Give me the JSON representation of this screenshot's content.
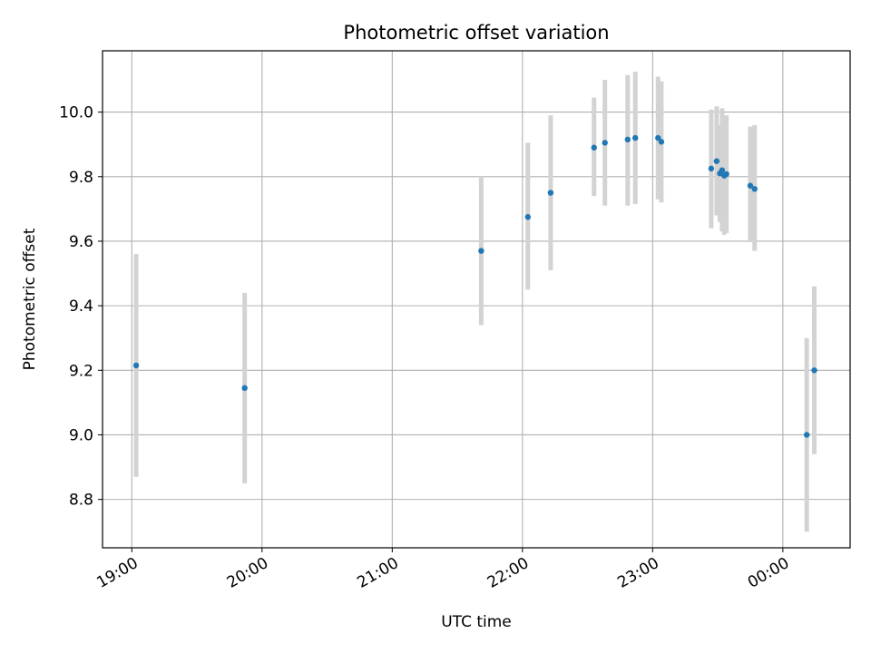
{
  "chart_data": {
    "type": "scatter",
    "title": "Photometric offset variation",
    "xlabel": "UTC time",
    "ylabel": "Photometric offset",
    "x_unit": "minutes since 19:00 UTC",
    "xlim": [
      -13.5,
      331
    ],
    "ylim": [
      8.65,
      10.19
    ],
    "grid": true,
    "x_ticks": [
      {
        "value": 0,
        "label": "19:00"
      },
      {
        "value": 60,
        "label": "20:00"
      },
      {
        "value": 120,
        "label": "21:00"
      },
      {
        "value": 180,
        "label": "22:00"
      },
      {
        "value": 240,
        "label": "23:00"
      },
      {
        "value": 300,
        "label": "00:00"
      }
    ],
    "y_ticks": [
      {
        "value": 8.8,
        "label": "8.8"
      },
      {
        "value": 9.0,
        "label": "9.0"
      },
      {
        "value": 9.2,
        "label": "9.2"
      },
      {
        "value": 9.4,
        "label": "9.4"
      },
      {
        "value": 9.6,
        "label": "9.6"
      },
      {
        "value": 9.8,
        "label": "9.8"
      },
      {
        "value": 10.0,
        "label": "10.0"
      }
    ],
    "point_color": "#1f77b4",
    "errorbar_color": "#d3d3d3",
    "points": [
      {
        "x": 2.0,
        "y": 9.215,
        "ylo": 8.87,
        "yhi": 9.56
      },
      {
        "x": 52.0,
        "y": 9.145,
        "ylo": 8.85,
        "yhi": 9.44
      },
      {
        "x": 161.0,
        "y": 9.57,
        "ylo": 9.34,
        "yhi": 9.8
      },
      {
        "x": 182.5,
        "y": 9.675,
        "ylo": 9.45,
        "yhi": 9.905
      },
      {
        "x": 193.0,
        "y": 9.75,
        "ylo": 9.51,
        "yhi": 9.99
      },
      {
        "x": 213.0,
        "y": 9.89,
        "ylo": 9.74,
        "yhi": 10.045
      },
      {
        "x": 218.0,
        "y": 9.905,
        "ylo": 9.71,
        "yhi": 10.1
      },
      {
        "x": 228.5,
        "y": 9.915,
        "ylo": 9.71,
        "yhi": 10.115
      },
      {
        "x": 232.0,
        "y": 9.92,
        "ylo": 9.715,
        "yhi": 10.125
      },
      {
        "x": 242.5,
        "y": 9.92,
        "ylo": 9.73,
        "yhi": 10.11
      },
      {
        "x": 244.0,
        "y": 9.908,
        "ylo": 9.72,
        "yhi": 10.095
      },
      {
        "x": 267.0,
        "y": 9.825,
        "ylo": 9.64,
        "yhi": 10.008
      },
      {
        "x": 269.5,
        "y": 9.848,
        "ylo": 9.68,
        "yhi": 10.018
      },
      {
        "x": 271.0,
        "y": 9.81,
        "ylo": 9.66,
        "yhi": 9.96
      },
      {
        "x": 272.0,
        "y": 9.82,
        "ylo": 9.63,
        "yhi": 10.012
      },
      {
        "x": 273.0,
        "y": 9.803,
        "ylo": 9.62,
        "yhi": 9.98
      },
      {
        "x": 274.0,
        "y": 9.808,
        "ylo": 9.625,
        "yhi": 9.99
      },
      {
        "x": 285.0,
        "y": 9.772,
        "ylo": 9.6,
        "yhi": 9.955
      },
      {
        "x": 287.0,
        "y": 9.762,
        "ylo": 9.57,
        "yhi": 9.96
      },
      {
        "x": 311.0,
        "y": 9.0,
        "ylo": 8.7,
        "yhi": 9.3
      },
      {
        "x": 314.5,
        "y": 9.2,
        "ylo": 8.94,
        "yhi": 9.46
      }
    ]
  }
}
